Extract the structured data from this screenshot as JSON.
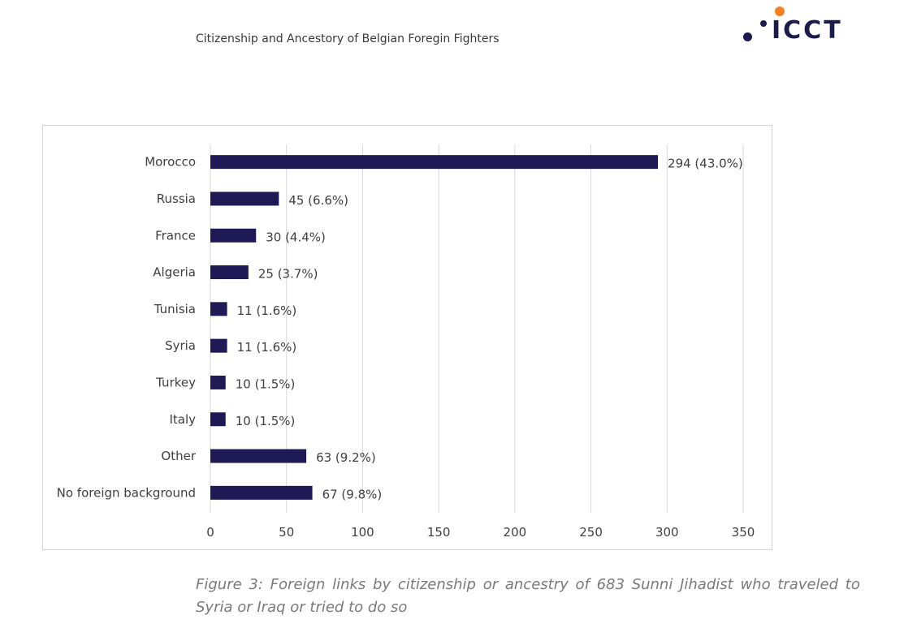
{
  "header": {
    "running_title": "Citizenship and Ancestory of Belgian Foregin Fighters",
    "logo_text": "ICCT",
    "logo_colors": {
      "orange": "#f58220",
      "navy": "#1d1b4e"
    }
  },
  "caption": {
    "words": [
      "Figure",
      "3:",
      "Foreign",
      "links",
      "by",
      "citizenship",
      "or",
      "ancestry",
      "of",
      "683",
      "Sunni",
      "Jihadist",
      "who",
      "traveled",
      "to"
    ],
    "line2": "Syria or Iraq or tried to do so"
  },
  "chart_data": {
    "type": "bar",
    "orientation": "horizontal",
    "title": "",
    "xlabel": "",
    "ylabel": "",
    "xlim": [
      0,
      350
    ],
    "xticks": [
      0,
      50,
      100,
      150,
      200,
      250,
      300,
      350
    ],
    "grid": true,
    "bar_color": "#1f1a55",
    "categories": [
      "Morocco",
      "Russia",
      "France",
      "Algeria",
      "Tunisia",
      "Syria",
      "Turkey",
      "Italy",
      "Other",
      "No foreign background"
    ],
    "values": [
      294,
      45,
      30,
      25,
      11,
      11,
      10,
      10,
      63,
      67
    ],
    "data_labels": [
      "294 (43.0%)",
      "45 (6.6%)",
      "30 (4.4%)",
      "25 (3.7%)",
      "11 (1.6%)",
      "11 (1.6%)",
      "10 (1.5%)",
      "10 (1.5%)",
      "63 (9.2%)",
      "67 (9.8%)"
    ]
  }
}
